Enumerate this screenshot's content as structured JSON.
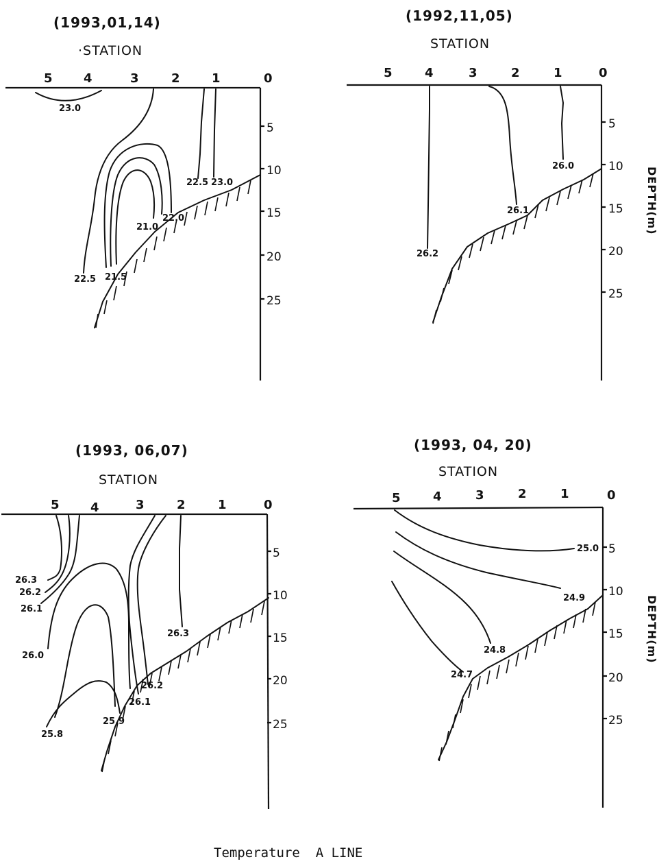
{
  "caption": "Temperature  A LINE",
  "station_label": "STATION",
  "depth_label": "DEPTH(m)",
  "panels": [
    {
      "date": "(1993,01,14)",
      "station_label": "·STATION",
      "stations": [
        "5",
        "4",
        "3",
        "2",
        "1",
        "0"
      ],
      "depths": [
        "5",
        "10",
        "15",
        "20",
        "25"
      ],
      "isotherms": [
        "23.0",
        "22.5",
        "23.0",
        "22.0",
        "21.0",
        "21.5",
        "22.5"
      ]
    },
    {
      "date": "(1992,11,05)",
      "station_label": "STATION",
      "stations": [
        "5",
        "4",
        "3",
        "2",
        "1",
        "0"
      ],
      "depths": [
        "5",
        "10",
        "15",
        "20",
        "25"
      ],
      "isotherms": [
        "26.0",
        "26.1",
        "26.2"
      ],
      "depth_label": "DEPTH(m)"
    },
    {
      "date": "(1993, 06,07)",
      "station_label": "STATION",
      "stations": [
        "5",
        "4",
        "3",
        "2",
        "1",
        "0"
      ],
      "depths": [
        "5",
        "10",
        "15",
        "20",
        "25"
      ],
      "isotherms": [
        "26.3",
        "26.2",
        "26.1",
        "26.0",
        "25.8",
        "25.9",
        "26.1",
        "26.2",
        "26.3"
      ]
    },
    {
      "date": "(1993, 04, 20)",
      "station_label": "STATION",
      "stations": [
        "5",
        "4",
        "3",
        "2",
        "1",
        "0"
      ],
      "depths": [
        "5",
        "10",
        "15",
        "20",
        "25"
      ],
      "isotherms": [
        "25.0",
        "24.9",
        "24.8",
        "24.7"
      ],
      "depth_label": "DEPTH(m)"
    }
  ]
}
